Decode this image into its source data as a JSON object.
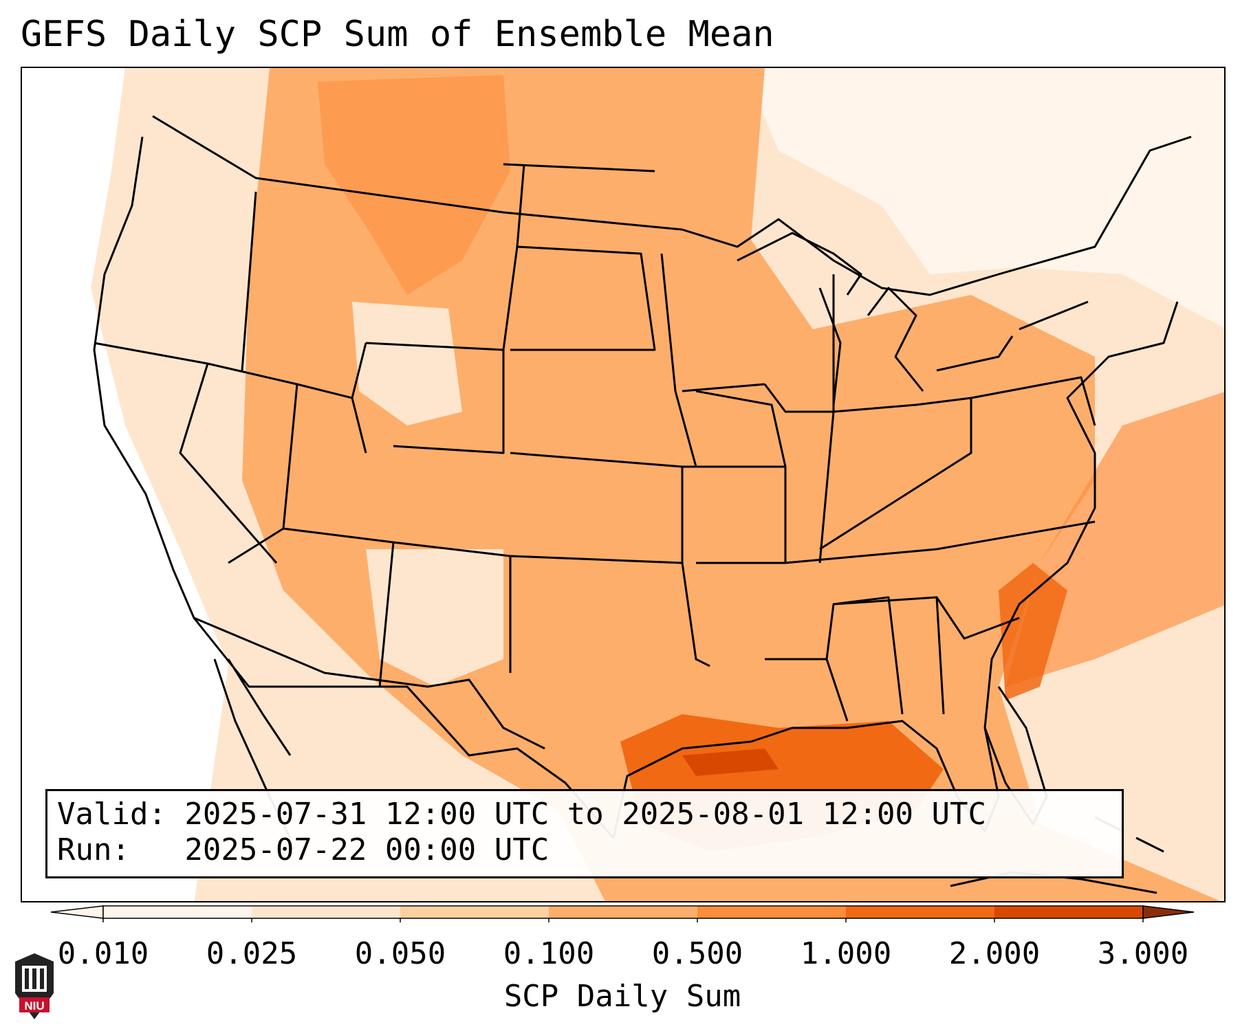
{
  "title": "GEFS Daily SCP Sum of Ensemble Mean",
  "valid_line": "Valid: 2025-07-31 12:00 UTC to 2025-08-01 12:00 UTC",
  "run_line": "Run:   2025-07-22 00:00 UTC",
  "colorbar": {
    "label": "SCP Daily Sum",
    "ticks": [
      "0.010",
      "0.025",
      "0.050",
      "0.100",
      "0.500",
      "1.000",
      "2.000",
      "3.000"
    ],
    "colors": [
      "#fff5eb",
      "#fee6ce",
      "#fdd0a2",
      "#fdae6b",
      "#fd8d3c",
      "#f16913",
      "#d94801",
      "#8c2d04"
    ],
    "extend": "both"
  },
  "logo": {
    "text": "NIU",
    "icon": "university-seal-icon"
  }
}
